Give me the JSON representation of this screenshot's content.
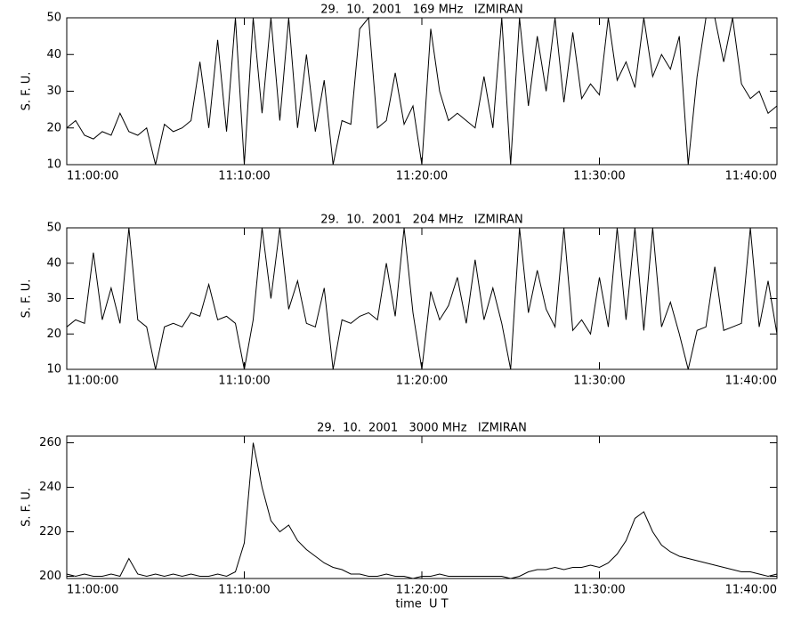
{
  "chart_data": [
    {
      "type": "line",
      "title": "29.  10.  2001   169 MHz   IZMIRAN",
      "y_label": "S. F. U.",
      "color": "#000000",
      "grid": false,
      "xlim": [
        "11:00:00",
        "11:40:00"
      ],
      "xticks": [
        "11:00:00",
        "11:10:00",
        "11:20:00",
        "11:30:00",
        "11:40:00"
      ],
      "ylim": [
        10,
        50
      ],
      "yticks": [
        10,
        20,
        30,
        40,
        50
      ],
      "x": [
        "11:00:00",
        "11:00:30",
        "11:01:00",
        "11:01:30",
        "11:02:00",
        "11:02:30",
        "11:03:00",
        "11:03:30",
        "11:04:00",
        "11:04:30",
        "11:05:00",
        "11:05:30",
        "11:06:00",
        "11:06:30",
        "11:07:00",
        "11:07:30",
        "11:08:00",
        "11:08:30",
        "11:09:00",
        "11:09:30",
        "11:10:00",
        "11:10:30",
        "11:11:00",
        "11:11:30",
        "11:12:00",
        "11:12:30",
        "11:13:00",
        "11:13:30",
        "11:14:00",
        "11:14:30",
        "11:15:00",
        "11:15:30",
        "11:16:00",
        "11:16:30",
        "11:17:00",
        "11:17:30",
        "11:18:00",
        "11:18:30",
        "11:19:00",
        "11:19:30",
        "11:20:00",
        "11:20:30",
        "11:21:00",
        "11:21:30",
        "11:22:00",
        "11:22:30",
        "11:23:00",
        "11:23:30",
        "11:24:00",
        "11:24:30",
        "11:25:00",
        "11:25:30",
        "11:26:00",
        "11:26:30",
        "11:27:00",
        "11:27:30",
        "11:28:00",
        "11:28:30",
        "11:29:00",
        "11:29:30",
        "11:30:00",
        "11:30:30",
        "11:31:00",
        "11:31:30",
        "11:32:00",
        "11:32:30",
        "11:33:00",
        "11:33:30",
        "11:34:00",
        "11:34:30",
        "11:35:00",
        "11:35:30",
        "11:36:00",
        "11:36:30",
        "11:37:00",
        "11:37:30",
        "11:38:00",
        "11:38:30",
        "11:39:00",
        "11:39:30",
        "11:40:00"
      ],
      "values": [
        20,
        22,
        18,
        17,
        19,
        18,
        24,
        19,
        18,
        20,
        10,
        21,
        19,
        20,
        22,
        38,
        20,
        44,
        19,
        50,
        10,
        50,
        24,
        50,
        22,
        50,
        20,
        40,
        19,
        33,
        10,
        22,
        21,
        47,
        50,
        20,
        22,
        35,
        21,
        26,
        10,
        47,
        30,
        22,
        24,
        22,
        20,
        34,
        20,
        50,
        10,
        50,
        26,
        45,
        30,
        50,
        27,
        46,
        28,
        32,
        29,
        50,
        33,
        38,
        31,
        50,
        34,
        40,
        36,
        45,
        10,
        34,
        50,
        50,
        38,
        50,
        32,
        28,
        30,
        24,
        26
      ]
    },
    {
      "type": "line",
      "title": "29.  10.  2001   204 MHz   IZMIRAN",
      "y_label": "S. F. U.",
      "color": "#000000",
      "grid": false,
      "xlim": [
        "11:00:00",
        "11:40:00"
      ],
      "xticks": [
        "11:00:00",
        "11:10:00",
        "11:20:00",
        "11:30:00",
        "11:40:00"
      ],
      "ylim": [
        10,
        50
      ],
      "yticks": [
        10,
        20,
        30,
        40,
        50
      ],
      "x": [
        "11:00:00",
        "11:00:30",
        "11:01:00",
        "11:01:30",
        "11:02:00",
        "11:02:30",
        "11:03:00",
        "11:03:30",
        "11:04:00",
        "11:04:30",
        "11:05:00",
        "11:05:30",
        "11:06:00",
        "11:06:30",
        "11:07:00",
        "11:07:30",
        "11:08:00",
        "11:08:30",
        "11:09:00",
        "11:09:30",
        "11:10:00",
        "11:10:30",
        "11:11:00",
        "11:11:30",
        "11:12:00",
        "11:12:30",
        "11:13:00",
        "11:13:30",
        "11:14:00",
        "11:14:30",
        "11:15:00",
        "11:15:30",
        "11:16:00",
        "11:16:30",
        "11:17:00",
        "11:17:30",
        "11:18:00",
        "11:18:30",
        "11:19:00",
        "11:19:30",
        "11:20:00",
        "11:20:30",
        "11:21:00",
        "11:21:30",
        "11:22:00",
        "11:22:30",
        "11:23:00",
        "11:23:30",
        "11:24:00",
        "11:24:30",
        "11:25:00",
        "11:25:30",
        "11:26:00",
        "11:26:30",
        "11:27:00",
        "11:27:30",
        "11:28:00",
        "11:28:30",
        "11:29:00",
        "11:29:30",
        "11:30:00",
        "11:30:30",
        "11:31:00",
        "11:31:30",
        "11:32:00",
        "11:32:30",
        "11:33:00",
        "11:33:30",
        "11:34:00",
        "11:34:30",
        "11:35:00",
        "11:35:30",
        "11:36:00",
        "11:36:30",
        "11:37:00",
        "11:37:30",
        "11:38:00",
        "11:38:30",
        "11:39:00",
        "11:39:30",
        "11:40:00"
      ],
      "values": [
        22,
        24,
        23,
        43,
        24,
        33,
        23,
        50,
        24,
        22,
        10,
        22,
        23,
        22,
        26,
        25,
        34,
        24,
        25,
        23,
        10,
        24,
        50,
        30,
        50,
        27,
        35,
        23,
        22,
        33,
        10,
        24,
        23,
        25,
        26,
        24,
        40,
        25,
        50,
        26,
        10,
        32,
        24,
        28,
        36,
        23,
        41,
        24,
        33,
        23,
        10,
        50,
        26,
        38,
        27,
        22,
        50,
        21,
        24,
        20,
        36,
        22,
        50,
        24,
        50,
        21,
        50,
        22,
        29,
        20,
        10,
        21,
        22,
        39,
        21,
        22,
        23,
        50,
        22,
        35,
        20
      ]
    },
    {
      "type": "line",
      "title": "29.  10.  2001   3000 MHz   IZMIRAN",
      "y_label": "S. F. U.",
      "x_label": "time  U T",
      "color": "#000000",
      "grid": false,
      "xlim": [
        "11:00:00",
        "11:40:00"
      ],
      "xticks": [
        "11:00:00",
        "11:10:00",
        "11:20:00",
        "11:30:00",
        "11:40:00"
      ],
      "ylim": [
        199,
        263
      ],
      "yticks": [
        200,
        220,
        240,
        260
      ],
      "x": [
        "11:00:00",
        "11:00:30",
        "11:01:00",
        "11:01:30",
        "11:02:00",
        "11:02:30",
        "11:03:00",
        "11:03:30",
        "11:04:00",
        "11:04:30",
        "11:05:00",
        "11:05:30",
        "11:06:00",
        "11:06:30",
        "11:07:00",
        "11:07:30",
        "11:08:00",
        "11:08:30",
        "11:09:00",
        "11:09:30",
        "11:10:00",
        "11:10:30",
        "11:11:00",
        "11:11:30",
        "11:12:00",
        "11:12:30",
        "11:13:00",
        "11:13:30",
        "11:14:00",
        "11:14:30",
        "11:15:00",
        "11:15:30",
        "11:16:00",
        "11:16:30",
        "11:17:00",
        "11:17:30",
        "11:18:00",
        "11:18:30",
        "11:19:00",
        "11:19:30",
        "11:20:00",
        "11:20:30",
        "11:21:00",
        "11:21:30",
        "11:22:00",
        "11:22:30",
        "11:23:00",
        "11:23:30",
        "11:24:00",
        "11:24:30",
        "11:25:00",
        "11:25:30",
        "11:26:00",
        "11:26:30",
        "11:27:00",
        "11:27:30",
        "11:28:00",
        "11:28:30",
        "11:29:00",
        "11:29:30",
        "11:30:00",
        "11:30:30",
        "11:31:00",
        "11:31:30",
        "11:32:00",
        "11:32:30",
        "11:33:00",
        "11:33:30",
        "11:34:00",
        "11:34:30",
        "11:35:00",
        "11:35:30",
        "11:36:00",
        "11:36:30",
        "11:37:00",
        "11:37:30",
        "11:38:00",
        "11:38:30",
        "11:39:00",
        "11:39:30",
        "11:40:00"
      ],
      "values": [
        201,
        200,
        201,
        200,
        200,
        201,
        200,
        208,
        201,
        200,
        201,
        200,
        201,
        200,
        201,
        200,
        200,
        201,
        200,
        202,
        215,
        260,
        240,
        225,
        220,
        223,
        216,
        212,
        209,
        206,
        204,
        203,
        201,
        201,
        200,
        200,
        201,
        200,
        200,
        199,
        200,
        200,
        201,
        200,
        200,
        200,
        200,
        200,
        200,
        200,
        199,
        200,
        202,
        203,
        203,
        204,
        203,
        204,
        204,
        205,
        204,
        206,
        210,
        216,
        226,
        229,
        220,
        214,
        211,
        209,
        208,
        207,
        206,
        205,
        204,
        203,
        202,
        202,
        201,
        200,
        201
      ]
    }
  ]
}
